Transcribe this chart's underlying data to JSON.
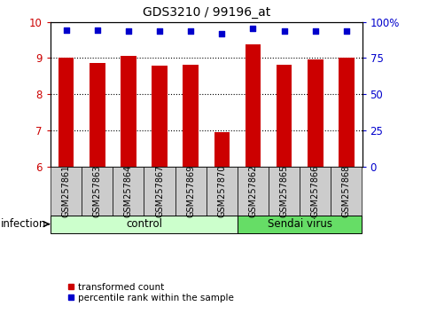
{
  "title": "GDS3210 / 99196_at",
  "samples": [
    "GSM257861",
    "GSM257863",
    "GSM257864",
    "GSM257867",
    "GSM257869",
    "GSM257870",
    "GSM257862",
    "GSM257865",
    "GSM257866",
    "GSM257868"
  ],
  "red_values": [
    9.0,
    8.87,
    9.05,
    8.78,
    8.82,
    6.95,
    9.38,
    8.82,
    8.97,
    9.0
  ],
  "blue_values": [
    9.78,
    9.78,
    9.75,
    9.75,
    9.75,
    9.68,
    9.82,
    9.75,
    9.75,
    9.75
  ],
  "groups": [
    {
      "label": "control",
      "start": 0,
      "end": 6,
      "color": "#ccffcc"
    },
    {
      "label": "Sendai virus",
      "start": 6,
      "end": 10,
      "color": "#66dd66"
    }
  ],
  "infection_label": "infection",
  "ylim_left": [
    6,
    10
  ],
  "ylim_right": [
    0,
    100
  ],
  "yticks_left": [
    6,
    7,
    8,
    9,
    10
  ],
  "yticks_right": [
    0,
    25,
    50,
    75,
    100
  ],
  "ytick_right_labels": [
    "0",
    "25",
    "50",
    "75",
    "100%"
  ],
  "bar_color": "#cc0000",
  "dot_color": "#0000cc",
  "background_color": "#ffffff",
  "label_box_color": "#cccccc",
  "legend_red": "transformed count",
  "legend_blue": "percentile rank within the sample",
  "bar_width": 0.5,
  "n_control": 6,
  "n_sendai": 4
}
